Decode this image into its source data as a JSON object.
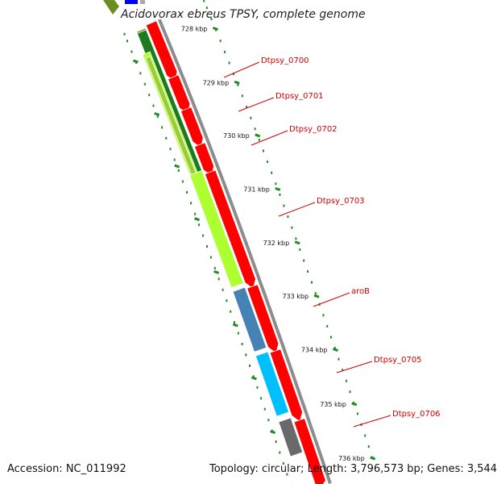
{
  "title": "Acidovorax ebreus TPSY, complete genome",
  "footer": {
    "accession": "Accession: NC_011992",
    "summary": "Topology: circular; Length: 3,796,573 bp; Genes: 3,544"
  },
  "scale_ticks": [
    "728 kbp",
    "729 kbp",
    "730 kbp",
    "731 kbp",
    "732 kbp",
    "733 kbp",
    "734 kbp",
    "735 kbp",
    "736 kbp"
  ],
  "genes": [
    {
      "label": "Dtpsy_0700",
      "color": "#228b22"
    },
    {
      "label": "Dtpsy_0701",
      "color": "#1e7a1e"
    },
    {
      "label": "Dtpsy_0702",
      "color": "#2e8b2e"
    },
    {
      "label": "Dtpsy_0703",
      "color": "#adff2f"
    },
    {
      "label": "aroB",
      "color": "#4682b4"
    },
    {
      "label": "Dtpsy_0705",
      "color": "#00bfff"
    },
    {
      "label": "Dtpsy_0706",
      "color": "#696969"
    }
  ],
  "colors": {
    "cds": "#ff0000",
    "backbone": "#8c8c8c",
    "tick_dots": "#228b22",
    "label_text": "#d40000",
    "top_arrow_blue": "#0000ff",
    "top_arrow_olive": "#6b8e23"
  }
}
